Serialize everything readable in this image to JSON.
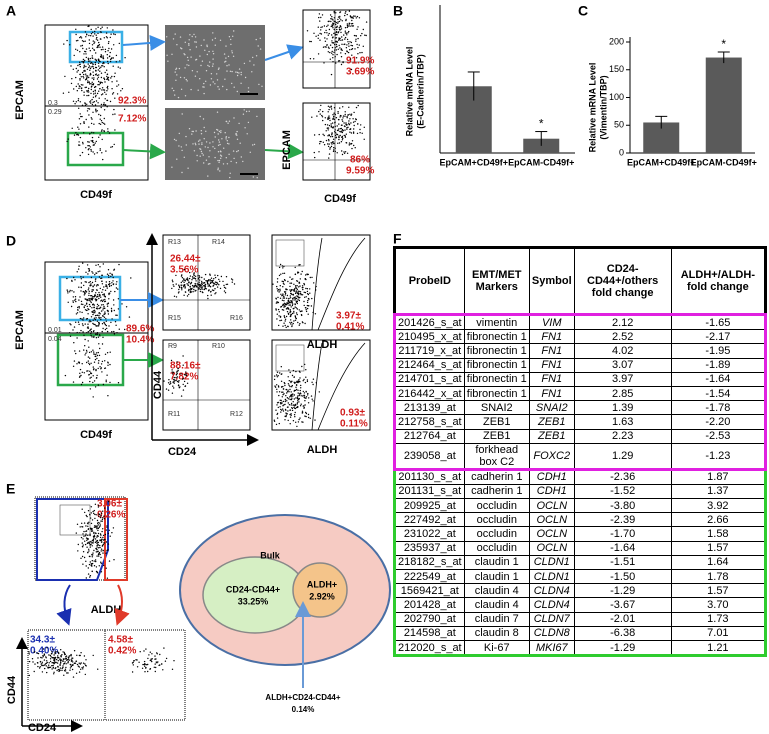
{
  "letters": [
    "A",
    "B",
    "C",
    "D",
    "E",
    "F"
  ],
  "panels": {
    "A": {
      "y_label": "EPCAM",
      "x_label": "CD49f",
      "gate_top": "92.3%",
      "gate_bottom": "7.12%",
      "small": [
        "0.3",
        "0.29"
      ],
      "upper_pct": [
        "91.9%",
        "3.69%"
      ],
      "lower_pct": [
        "86%",
        "9.59%"
      ],
      "sub_y_label": "EPCAM",
      "sub_x_label": "CD49f"
    },
    "D": {
      "y_label": "EPCAM",
      "x_label": "CD49f",
      "gate_top": "89.6%",
      "gate_bottom": "10.4%",
      "small": [
        "0.01",
        "0.04"
      ],
      "cd_upper_regions": [
        "R13",
        "R14",
        "R15",
        "R16"
      ],
      "cd_upper_pct": [
        "26.44±",
        "3.56%"
      ],
      "cd_lower_regions": [
        "R9",
        "R10",
        "R11",
        "R12"
      ],
      "cd_lower_pct": [
        "88.16±",
        "7.82%"
      ],
      "aldh_upper_pct": [
        "3.97±",
        "0.41%"
      ],
      "aldh_lower_pct": [
        "0.93±",
        "0.11%"
      ],
      "cd_y_label": "CD44",
      "cd_x_label": "CD24",
      "aldh_x_label": "ALDH"
    },
    "E": {
      "x_label": "ALDH",
      "gate_pct": [
        "3.06±",
        "0.26%"
      ],
      "left_pct": [
        "34.3±",
        "0.40%"
      ],
      "right_pct": [
        "4.58±",
        "0.42%"
      ],
      "cd_y_label": "CD44",
      "cd_x_label": "CD24",
      "venn": {
        "outer": "Bulk",
        "left": [
          "CD24-CD44+",
          "33.25%"
        ],
        "right": [
          "ALDH+",
          "2.92%"
        ],
        "overlap": [
          "ALDH+CD24-CD44+",
          "0.14%"
        ]
      }
    }
  },
  "chart_data": [
    {
      "type": "bar",
      "y_label": [
        "Relative mRNA Level",
        "(E-Cadherin/TBP)"
      ],
      "categories": [
        "EpCAM+CD49f+",
        "EpCAM-CD49f+"
      ],
      "values": [
        5.6,
        1.2
      ],
      "errors": [
        1.2,
        0.6
      ],
      "color": "#5a5a5a",
      "ylim": [
        0,
        12
      ],
      "annotations": [
        {
          "category": "EpCAM-CD49f+",
          "text": "*"
        }
      ]
    },
    {
      "type": "bar",
      "y_label": [
        "Relative mRNA Level",
        "(Vimentin/TBP)"
      ],
      "categories": [
        "EpCAM+CD49f+",
        "EpCAM-CD49f+"
      ],
      "values": [
        55,
        172
      ],
      "errors": [
        11,
        10
      ],
      "color": "#5a5a5a",
      "ylim": [
        0,
        200
      ],
      "yticks": [
        0,
        50,
        100,
        150,
        200
      ],
      "annotations": [
        {
          "category": "EpCAM-CD49f+",
          "text": "*"
        }
      ]
    }
  ],
  "table": {
    "header": [
      "ProbeID",
      "EMT/MET Markers",
      "Symbol",
      "CD24-CD44+/others fold change",
      "ALDH+/ALDH- fold change"
    ],
    "rows": [
      [
        "201426_s_at",
        "vimentin",
        "VIM",
        "2.12",
        "-1.65"
      ],
      [
        "210495_x_at",
        "fibronectin 1",
        "FN1",
        "2.52",
        "-2.17"
      ],
      [
        "211719_x_at",
        "fibronectin 1",
        "FN1",
        "4.02",
        "-1.95"
      ],
      [
        "212464_s_at",
        "fibronectin 1",
        "FN1",
        "3.07",
        "-1.89"
      ],
      [
        "214701_s_at",
        "fibronectin 1",
        "FN1",
        "3.97",
        "-1.64"
      ],
      [
        "216442_x_at",
        "fibronectin 1",
        "FN1",
        "2.85",
        "-1.54"
      ],
      [
        "213139_at",
        "SNAI2",
        "SNAI2",
        "1.39",
        "-1.78"
      ],
      [
        "212758_s_at",
        "ZEB1",
        "ZEB1",
        "1.63",
        "-2.20"
      ],
      [
        "212764_at",
        "ZEB1",
        "ZEB1",
        "2.23",
        "-2.53"
      ],
      [
        "239058_at",
        "forkhead box C2",
        "FOXC2",
        "1.29",
        "-1.23"
      ],
      [
        "201130_s_at",
        "cadherin 1",
        "CDH1",
        "-2.36",
        "1.87"
      ],
      [
        "201131_s_at",
        "cadherin 1",
        "CDH1",
        "-1.52",
        "1.37"
      ],
      [
        "209925_at",
        "occludin",
        "OCLN",
        "-3.80",
        "3.92"
      ],
      [
        "227492_at",
        "occludin",
        "OCLN",
        "-2.39",
        "2.66"
      ],
      [
        "231022_at",
        "occludin",
        "OCLN",
        "-1.70",
        "1.58"
      ],
      [
        "235937_at",
        "occludin",
        "OCLN",
        "-1.64",
        "1.57"
      ],
      [
        "218182_s_at",
        "claudin 1",
        "CLDN1",
        "-1.51",
        "1.64"
      ],
      [
        "222549_at",
        "claudin 1",
        "CLDN1",
        "-1.50",
        "1.78"
      ],
      [
        "1569421_at",
        "claudin 4",
        "CLDN4",
        "-1.29",
        "1.57"
      ],
      [
        "201428_at",
        "claudin 4",
        "CLDN4",
        "-3.67",
        "3.70"
      ],
      [
        "202790_at",
        "claudin 7",
        "CLDN7",
        "-2.01",
        "1.73"
      ],
      [
        "214598_at",
        "claudin 8",
        "CLDN8",
        "-6.38",
        "7.01"
      ],
      [
        "212020_s_at",
        "Ki-67",
        "MKI67",
        "-1.29",
        "1.21"
      ]
    ]
  }
}
